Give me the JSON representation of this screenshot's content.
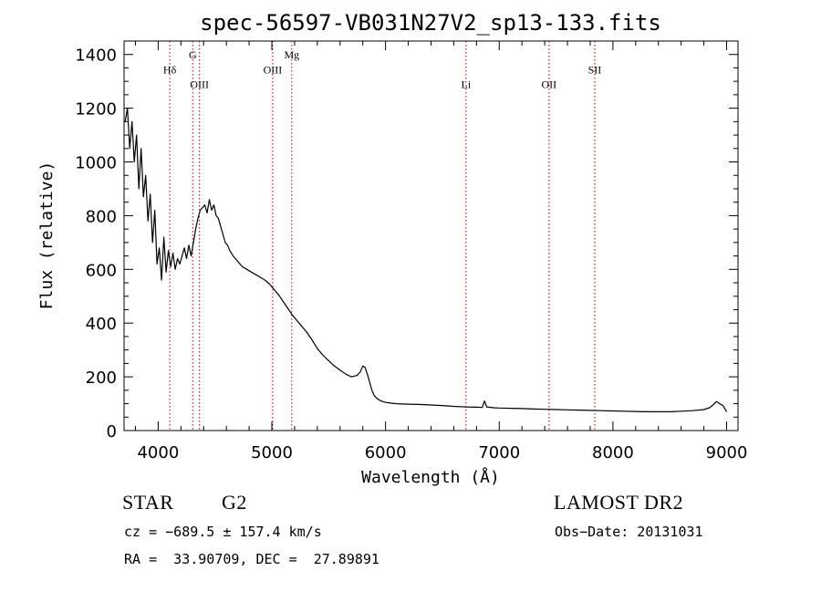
{
  "chart_data": {
    "type": "line",
    "title": "spec-56597-VB031N27V2_sp13-133.fits",
    "xlabel": "Wavelength (Å)",
    "ylabel": "Flux (relative)",
    "xlim": [
      3700,
      9100
    ],
    "ylim": [
      0,
      1450
    ],
    "xticks": [
      4000,
      5000,
      6000,
      7000,
      8000,
      9000
    ],
    "yticks": [
      0,
      200,
      400,
      600,
      800,
      1000,
      1200,
      1400
    ],
    "grid": false,
    "line_color": "#000000",
    "spectral_lines": [
      {
        "label": "Hδ",
        "wavelength": 4102,
        "label_flux": 1330
      },
      {
        "label": "G",
        "wavelength": 4304,
        "label_flux": 1385
      },
      {
        "label": "OIII",
        "wavelength": 4363,
        "label_flux": 1275
      },
      {
        "label": "OIII",
        "wavelength": 5007,
        "label_flux": 1330
      },
      {
        "label": "Mg",
        "wavelength": 5175,
        "label_flux": 1385
      },
      {
        "label": "Li",
        "wavelength": 6708,
        "label_flux": 1275
      },
      {
        "label": "OII",
        "wavelength": 7438,
        "label_flux": 1275
      },
      {
        "label": "SII",
        "wavelength": 7840,
        "label_flux": 1330
      }
    ],
    "line_marker_color": "#b00000",
    "series": [
      {
        "x": [
          3710,
          3730,
          3750,
          3770,
          3790,
          3810,
          3830,
          3850,
          3870,
          3890,
          3910,
          3930,
          3950,
          3970,
          3990,
          4010,
          4030,
          4050,
          4070,
          4090,
          4110,
          4130,
          4150,
          4170,
          4190,
          4210,
          4230,
          4250,
          4270,
          4290,
          4310,
          4330,
          4350,
          4370,
          4390,
          4410,
          4430,
          4450,
          4470,
          4490,
          4510,
          4530,
          4550,
          4570,
          4590,
          4610,
          4630,
          4660,
          4700,
          4740,
          4780,
          4820,
          4860,
          4900,
          4940,
          4980,
          5020,
          5060,
          5100,
          5140,
          5180,
          5220,
          5260,
          5300,
          5350,
          5400,
          5450,
          5500,
          5550,
          5600,
          5650,
          5700,
          5750,
          5780,
          5800,
          5820,
          5840,
          5860,
          5880,
          5900,
          5930,
          5960,
          6000,
          6050,
          6100,
          6200,
          6300,
          6400,
          6500,
          6600,
          6700,
          6800,
          6850,
          6870,
          6890,
          6950,
          7000,
          7100,
          7200,
          7300,
          7400,
          7500,
          7600,
          7700,
          7800,
          7900,
          8000,
          8100,
          8200,
          8300,
          8400,
          8500,
          8600,
          8700,
          8800,
          8850,
          8880,
          8910,
          8940,
          8970,
          9000
        ],
        "y": [
          1150,
          1200,
          1050,
          1150,
          1000,
          1100,
          900,
          1050,
          870,
          950,
          780,
          880,
          700,
          820,
          620,
          680,
          560,
          720,
          590,
          670,
          610,
          660,
          600,
          640,
          620,
          650,
          680,
          640,
          690,
          650,
          700,
          750,
          790,
          820,
          830,
          840,
          810,
          860,
          820,
          840,
          800,
          790,
          760,
          730,
          700,
          690,
          670,
          650,
          630,
          610,
          600,
          590,
          580,
          570,
          560,
          545,
          525,
          505,
          480,
          455,
          430,
          410,
          390,
          370,
          340,
          305,
          280,
          260,
          240,
          225,
          210,
          200,
          205,
          220,
          240,
          235,
          210,
          180,
          150,
          130,
          118,
          110,
          105,
          102,
          100,
          98,
          97,
          95,
          93,
          90,
          88,
          87,
          86,
          110,
          88,
          85,
          84,
          83,
          82,
          80,
          79,
          78,
          77,
          76,
          75,
          74,
          73,
          72,
          71,
          70,
          70,
          70,
          72,
          74,
          78,
          85,
          95,
          108,
          100,
          92,
          70
        ]
      }
    ]
  },
  "info": {
    "object_class": "STAR",
    "subclass": "G2",
    "survey": "LAMOST DR2",
    "cz": "cz = −689.5 ± 157.4 km/s",
    "obs_date": "Obs−Date: 20131031",
    "coords": "RA =  33.90709, DEC =  27.89891"
  }
}
